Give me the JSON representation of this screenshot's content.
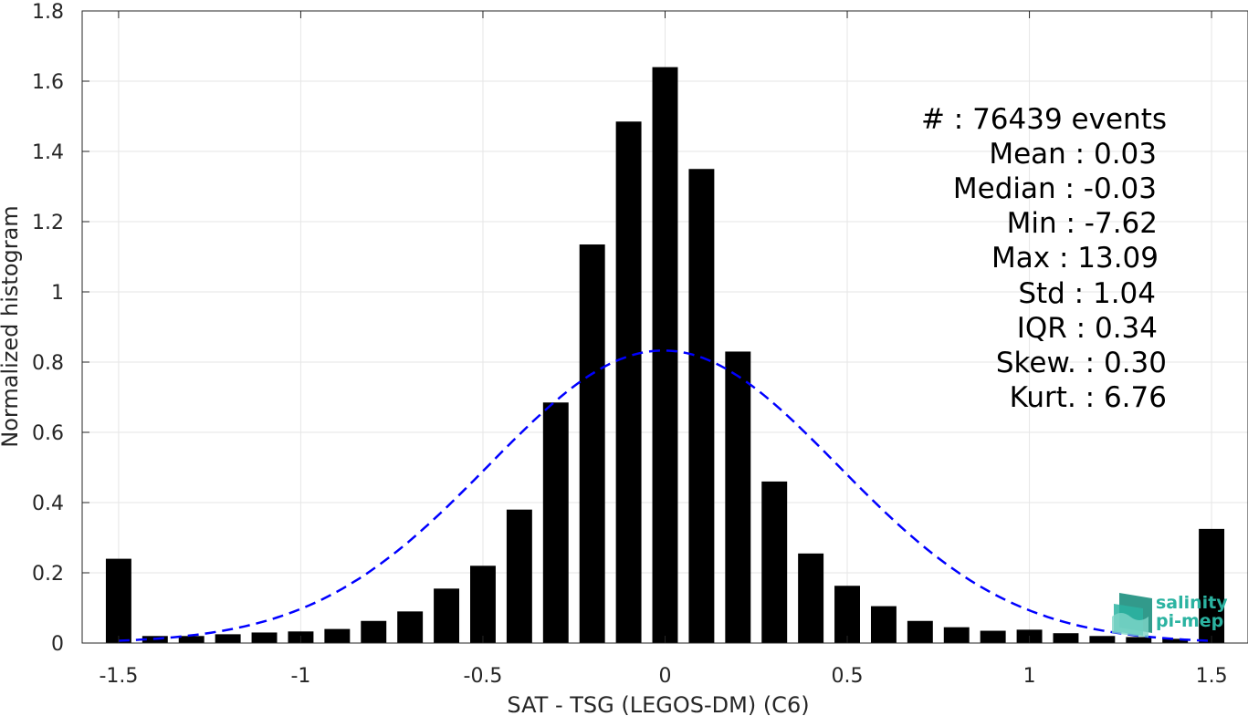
{
  "chart_data": {
    "type": "bar",
    "xlabel": "SAT - TSG (LEGOS-DM) (C6)",
    "ylabel": "Normalized histogram",
    "xlim": [
      -1.6,
      1.6
    ],
    "ylim": [
      0,
      1.8
    ],
    "xticks": [
      -1.5,
      -1,
      -0.5,
      0,
      0.5,
      1,
      1.5
    ],
    "xtick_labels": [
      "-1.5",
      "-1",
      "-0.5",
      "0",
      "0.5",
      "1",
      "1.5"
    ],
    "yticks": [
      0,
      0.2,
      0.4,
      0.6,
      0.8,
      1,
      1.2,
      1.4,
      1.6,
      1.8
    ],
    "ytick_labels": [
      "0",
      "0.2",
      "0.4",
      "0.6",
      "0.8",
      "1",
      "1.2",
      "1.4",
      "1.6",
      "1.8"
    ],
    "grid": true,
    "bar_color": "#000000",
    "bin_width": 0.1,
    "bar_width_fraction": 0.7,
    "x": [
      -1.5,
      -1.4,
      -1.3,
      -1.2,
      -1.1,
      -1.0,
      -0.9,
      -0.8,
      -0.7,
      -0.6,
      -0.5,
      -0.4,
      -0.3,
      -0.2,
      -0.1,
      0.0,
      0.1,
      0.2,
      0.3,
      0.4,
      0.5,
      0.6,
      0.7,
      0.8,
      0.9,
      1.0,
      1.1,
      1.2,
      1.3,
      1.4,
      1.5
    ],
    "values": [
      0.24,
      0.02,
      0.02,
      0.025,
      0.03,
      0.033,
      0.04,
      0.063,
      0.09,
      0.155,
      0.22,
      0.38,
      0.685,
      1.135,
      1.485,
      1.64,
      1.35,
      0.83,
      0.46,
      0.255,
      0.163,
      0.105,
      0.063,
      0.045,
      0.035,
      0.038,
      0.028,
      0.02,
      0.017,
      0.012,
      0.325
    ],
    "fit_curve": {
      "type": "normal",
      "mean": -0.005,
      "std": 0.48,
      "peak": 0.833,
      "color": "#0000ff",
      "style": "dashed"
    }
  },
  "stats": {
    "lines": [
      "#  : 76439 events",
      "Mean : 0.03",
      "Median : -0.03",
      "Min : -7.62",
      "Max : 13.09",
      "Std : 1.04",
      "IQR : 0.34",
      "Skew. : 0.30",
      "Kurt. : 6.76"
    ]
  },
  "logo": {
    "line1": "salinity",
    "line2": "pi-mep",
    "color": "#2bb3a1"
  }
}
